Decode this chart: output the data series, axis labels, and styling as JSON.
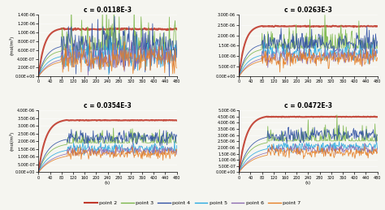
{
  "panels": [
    {
      "title": "c = 0.0118E-3",
      "ylim": [
        0,
        1.4e-06
      ],
      "yticks": [
        0,
        2e-07,
        4e-07,
        6e-07,
        8e-07,
        1e-06,
        1.2e-06,
        1.4e-06
      ],
      "ytick_labels": [
        "0.00E+00",
        "2.00E-07",
        "4.00E-07",
        "6.00E-07",
        "8.00E-07",
        "1.00E-06",
        "1.20E-06",
        "1.40E-06"
      ],
      "steady_val": 1.1e-06,
      "noise_amp": 2e-07,
      "noise_amp2": 3e-07,
      "rise_time": 80
    },
    {
      "title": "c = 0.0263E-3",
      "ylim": [
        0,
        3e-06
      ],
      "yticks": [
        0,
        5e-07,
        1e-06,
        1.5e-06,
        2e-06,
        2.5e-06,
        3e-06
      ],
      "ytick_labels": [
        "0.00E+00",
        "5.00E-07",
        "1.00E-06",
        "1.50E-06",
        "2.00E-06",
        "2.50E-06",
        "3.00E-06"
      ],
      "steady_val": 2.5e-06,
      "noise_amp": 2.5e-07,
      "noise_amp2": 4e-07,
      "rise_time": 80
    },
    {
      "title": "c = 0.0354E-3",
      "ylim": [
        0,
        4e-06
      ],
      "yticks": [
        0,
        5e-07,
        1e-06,
        1.5e-06,
        2e-06,
        2.5e-06,
        3e-06,
        3.5e-06,
        4e-06
      ],
      "ytick_labels": [
        "0.00E+00",
        "5.00E-07",
        "1.00E-06",
        "1.50E-06",
        "2.00E-06",
        "2.50E-06",
        "3.00E-06",
        "3.50E-06",
        "4.00E-06"
      ],
      "steady_val": 3.45e-06,
      "noise_amp": 2e-07,
      "noise_amp2": 3e-07,
      "rise_time": 100
    },
    {
      "title": "c = 0.0472E-3",
      "ylim": [
        0,
        5e-06
      ],
      "yticks": [
        0,
        5e-07,
        1e-06,
        1.5e-06,
        2e-06,
        2.5e-06,
        3e-06,
        3.5e-06,
        4e-06,
        4.5e-06,
        5e-06
      ],
      "ytick_labels": [
        "0.00E+00",
        "5.00E-07",
        "1.00E-06",
        "1.50E-06",
        "2.00E-06",
        "2.50E-06",
        "3.00E-06",
        "3.50E-06",
        "4.00E-06",
        "4.50E-06",
        "5.00E-06"
      ],
      "steady_val": 4.6e-06,
      "noise_amp": 2.5e-07,
      "noise_amp2": 4e-07,
      "rise_time": 100
    }
  ],
  "xlim": [
    0,
    480
  ],
  "xticks": [
    0,
    40,
    80,
    120,
    160,
    200,
    240,
    280,
    320,
    360,
    400,
    440,
    480
  ],
  "xlabel": "(s)",
  "ylabel": "(mol/m³)",
  "colors": {
    "point2": "#c0392b",
    "point3": "#7ab648",
    "point4": "#2e4fa3",
    "point5": "#27a9e1",
    "point6": "#8c6bb1",
    "point7": "#e67e22"
  },
  "legend_labels": [
    "point 2",
    "point 3",
    "point 4",
    "point 5",
    "point 6",
    "point 7"
  ],
  "bg_color": "#f5f5f0"
}
